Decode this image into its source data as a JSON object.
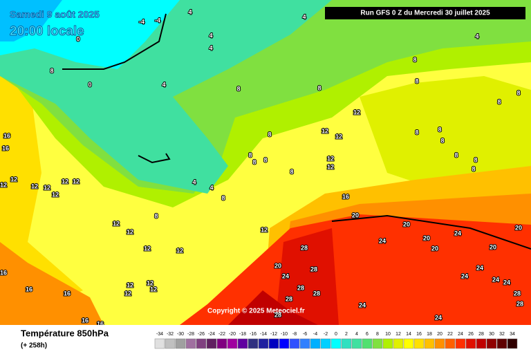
{
  "header": {
    "date": "Samedi 9 août 2025",
    "time": "20:00 locale",
    "run": "Run GFS 0 Z du Mercredi 30 juillet 2025",
    "copyright": "Copyright © 2025 Meteociel.fr"
  },
  "footer": {
    "title": "Température 850hPa",
    "lead": "(+ 258h)"
  },
  "scale": {
    "values": [
      -34,
      -32,
      -30,
      -28,
      -26,
      -24,
      -22,
      -20,
      -18,
      -16,
      -14,
      -12,
      -10,
      -8,
      -6,
      -4,
      -2,
      0,
      2,
      4,
      6,
      8,
      10,
      12,
      14,
      16,
      18,
      20,
      22,
      24,
      26,
      28,
      30,
      32,
      34
    ],
    "colors": [
      "#e0e0e0",
      "#c0c0c0",
      "#a0a0a0",
      "#a070a0",
      "#804080",
      "#602060",
      "#800080",
      "#a000a0",
      "#6000a0",
      "#303080",
      "#2020a0",
      "#0000c0",
      "#0000ff",
      "#3050ff",
      "#3080ff",
      "#00b0ff",
      "#00d0ff",
      "#00ffff",
      "#30e0c0",
      "#40e0a0",
      "#50e070",
      "#80e040",
      "#b0f000",
      "#e0f000",
      "#ffff00",
      "#ffe000",
      "#ffc000",
      "#ff9000",
      "#ff6000",
      "#ff3000",
      "#e01000",
      "#c00000",
      "#900000",
      "#600000",
      "#300000"
    ]
  },
  "contour_labels": [
    4,
    -4,
    -4,
    0,
    4,
    4,
    4,
    4,
    8,
    8,
    0,
    4,
    8,
    8,
    8,
    8,
    8,
    12,
    12,
    12,
    8,
    16,
    16,
    8,
    8,
    8,
    8,
    8,
    8,
    8,
    8,
    8,
    12,
    12,
    8,
    12,
    12,
    12,
    12,
    12,
    12,
    12,
    4,
    4,
    8,
    16,
    8,
    20,
    20,
    12,
    12,
    12,
    20,
    24,
    24,
    20,
    20,
    20,
    12,
    12,
    28,
    20,
    24,
    28,
    24,
    24,
    24,
    24,
    16,
    16,
    12,
    12,
    12,
    12,
    28,
    28,
    28,
    16,
    28,
    28,
    28,
    24,
    24,
    16,
    16
  ]
}
